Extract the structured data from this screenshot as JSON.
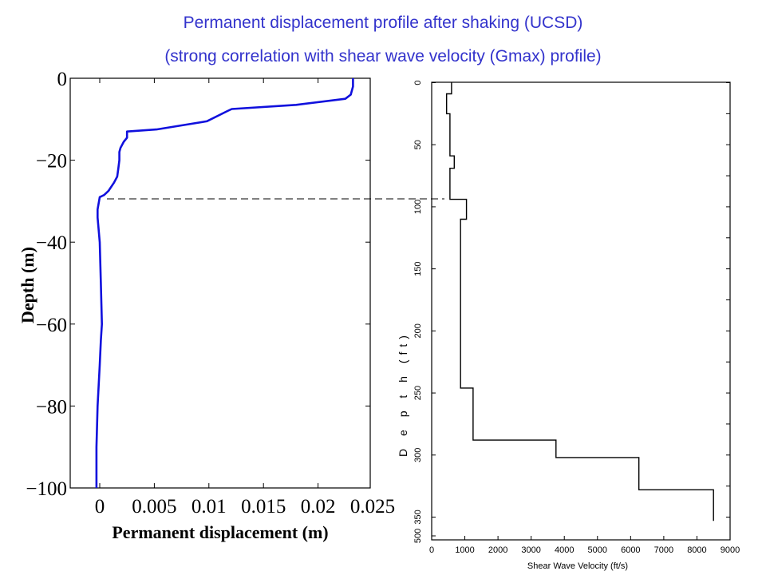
{
  "title": {
    "line1": "Permanent displacement profile after shaking (UCSD)",
    "line2": "(strong correlation with shear wave velocity (Gmax) profile)"
  },
  "colors": {
    "title": "#3333cc",
    "displacement_line": "#1010dd",
    "velocity_line": "#000000"
  },
  "chart_data": [
    {
      "type": "line",
      "xlabel": "Permanent displacement (m)",
      "ylabel": "Depth (m)",
      "xlim": [
        -0.0025,
        0.025
      ],
      "ylim": [
        -100,
        0
      ],
      "xticks": [
        0,
        0.005,
        0.01,
        0.015,
        0.02,
        0.025
      ],
      "xtick_labels": [
        "0",
        "0.005",
        "0.01",
        "0.015",
        "0.02",
        "0.025"
      ],
      "yticks": [
        0,
        -20,
        -40,
        -60,
        -80,
        -100
      ],
      "ytick_labels": [
        "0",
        "−20",
        "−40",
        "−60",
        "−80",
        "−100"
      ],
      "grid": false,
      "series": [
        {
          "x": [
            0.0232,
            0.0232,
            0.023,
            0.0225,
            0.018,
            0.0121,
            0.0117,
            0.0098,
            0.0075,
            0.0052,
            0.0025,
            0.0025,
            0.0022,
            0.0019,
            0.0018,
            0.0018,
            0.0017,
            0.0016,
            0.0013,
            0.0008,
            0.0004,
            0.0,
            -0.0002,
            -0.0002,
            0.0,
            0.0001,
            0.0002,
            0.0001,
            0.0,
            -0.0002,
            -0.0003,
            -0.0003
          ],
          "y": [
            0,
            -2,
            -4,
            -5,
            -6.5,
            -7.5,
            -8,
            -10.5,
            -11.5,
            -12.5,
            -13,
            -14.5,
            -15.5,
            -17,
            -18,
            -20,
            -22,
            -24,
            -25.5,
            -27.5,
            -28.5,
            -29,
            -32,
            -34,
            -40,
            -50,
            -60,
            -64,
            -70,
            -80,
            -90,
            -100
          ]
        }
      ]
    },
    {
      "type": "line",
      "xlabel": "Shear Wave Velocity (ft/s)",
      "ylabel": "D e p t h  (ft)",
      "xlim": [
        0,
        9000
      ],
      "ylim": [
        500,
        0
      ],
      "xticks": [
        0,
        1000,
        2000,
        3000,
        4000,
        5000,
        6000,
        7000,
        8000,
        9000
      ],
      "xtick_labels": [
        "0",
        "1000",
        "2000",
        "3000",
        "4000",
        "5000",
        "6000",
        "7000",
        "8000",
        "9000"
      ],
      "yticks": [
        0,
        50,
        100,
        150,
        200,
        250,
        300,
        350,
        500
      ],
      "ytick_labels": [
        "0",
        "50",
        "100",
        "150",
        "200",
        "250",
        "300",
        "350",
        "500"
      ],
      "grid": false,
      "series": [
        {
          "x": [
            600,
            600,
            450,
            450,
            550,
            550,
            680,
            680,
            550,
            550,
            1050,
            1050,
            870,
            870,
            1250,
            1250,
            3750,
            3750,
            6250,
            6250,
            8500,
            8500
          ],
          "y": [
            0,
            9,
            9,
            25,
            25,
            59,
            59,
            69,
            69,
            94,
            94,
            110,
            110,
            246,
            246,
            288,
            288,
            302,
            302,
            328,
            328,
            353
          ]
        }
      ]
    }
  ]
}
